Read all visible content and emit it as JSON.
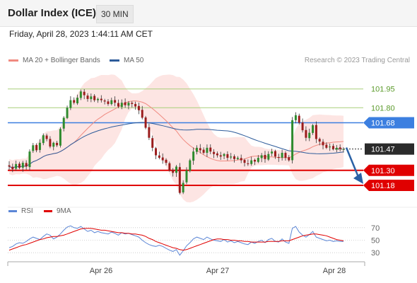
{
  "header": {
    "title": "Dollar Index (ICE)",
    "timeframe": "30 MIN"
  },
  "datetime": "Friday, April 28, 2023 1:44:11 AM CET",
  "legend": {
    "ma20_label": "MA 20 + Bollinger Bands",
    "ma50_label": "MA 50",
    "credit": "Research © 2023 Trading Central",
    "rsi_label": "RSI",
    "rsi_ma_label": "9MA"
  },
  "colors": {
    "ma20": "#f08a80",
    "ma50": "#2d5b9a",
    "bands_fill": "#fde0de",
    "candle_up": "#2e8b2e",
    "candle_down": "#9b1c1c",
    "level_green": "#a8cf7a",
    "level_blue": "#3c7fe0",
    "level_red": "#e00000",
    "current": "#2b2b2b",
    "arrow": "#2a61a5",
    "rsi": "#5b86d6",
    "rsi_ma": "#e00000"
  },
  "chart_data": [
    {
      "type": "candlestick",
      "title": "Dollar Index (ICE)",
      "x_ticks": [
        "Apr 26",
        "Apr 27",
        "Apr 28"
      ],
      "ylim": [
        101.05,
        102.05
      ],
      "levels": [
        {
          "value": 101.95,
          "label": "101.95",
          "kind": "resistance"
        },
        {
          "value": 101.8,
          "label": "101.80",
          "kind": "resistance"
        },
        {
          "value": 101.68,
          "label": "101.68",
          "kind": "pivot"
        },
        {
          "value": 101.47,
          "label": "101.47",
          "kind": "current"
        },
        {
          "value": 101.3,
          "label": "101.30",
          "kind": "support"
        },
        {
          "value": 101.18,
          "label": "101.18",
          "kind": "support"
        }
      ],
      "close": [
        101.33,
        101.31,
        101.35,
        101.32,
        101.36,
        101.33,
        101.45,
        101.5,
        101.46,
        101.52,
        101.58,
        101.55,
        101.49,
        101.52,
        101.5,
        101.63,
        101.72,
        101.8,
        101.86,
        101.84,
        101.88,
        101.93,
        101.9,
        101.87,
        101.89,
        101.86,
        101.87,
        101.86,
        101.85,
        101.83,
        101.86,
        101.84,
        101.81,
        101.84,
        101.82,
        101.84,
        101.83,
        101.81,
        101.78,
        101.72,
        101.64,
        101.56,
        101.48,
        101.42,
        101.4,
        101.38,
        101.36,
        101.3,
        101.28,
        101.33,
        101.12,
        101.2,
        101.3,
        101.38,
        101.45,
        101.48,
        101.46,
        101.44,
        101.48,
        101.45,
        101.43,
        101.42,
        101.41,
        101.43,
        101.4,
        101.41,
        101.39,
        101.4,
        101.38,
        101.36,
        101.35,
        101.38,
        101.37,
        101.4,
        101.42,
        101.39,
        101.43,
        101.45,
        101.41,
        101.4,
        101.44,
        101.4,
        101.38,
        101.7,
        101.74,
        101.68,
        101.62,
        101.56,
        101.6,
        101.66,
        101.55,
        101.53,
        101.5,
        101.48,
        101.49,
        101.47,
        101.48,
        101.47,
        101.47
      ],
      "series": [
        {
          "name": "MA 20 + Bollinger Bands"
        },
        {
          "name": "MA 50"
        }
      ]
    },
    {
      "type": "line",
      "title": "",
      "y_ticks": [
        70,
        50,
        30
      ],
      "ylim": [
        20,
        80
      ],
      "series": [
        {
          "name": "RSI",
          "values": [
            38,
            40,
            44,
            46,
            45,
            48,
            52,
            55,
            53,
            51,
            56,
            60,
            58,
            52,
            55,
            60,
            66,
            71,
            73,
            70,
            69,
            72,
            68,
            64,
            66,
            62,
            64,
            62,
            61,
            60,
            63,
            61,
            58,
            62,
            60,
            61,
            59,
            57,
            55,
            50,
            46,
            43,
            41,
            40,
            42,
            40,
            37,
            34,
            32,
            35,
            26,
            33,
            41,
            46,
            52,
            55,
            53,
            51,
            55,
            52,
            50,
            49,
            48,
            51,
            47,
            49,
            46,
            48,
            46,
            44,
            43,
            47,
            45,
            48,
            50,
            46,
            51,
            53,
            48,
            47,
            52,
            47,
            45,
            69,
            72,
            63,
            58,
            55,
            59,
            64,
            55,
            53,
            51,
            49,
            50,
            48,
            49,
            48,
            48
          ]
        },
        {
          "name": "9MA",
          "values": [
            34,
            36,
            38,
            40,
            42,
            43,
            45,
            47,
            49,
            51,
            52,
            54,
            55,
            56,
            56,
            57,
            58,
            60,
            62,
            64,
            66,
            68,
            69,
            69,
            69,
            68,
            67,
            66,
            66,
            65,
            64,
            63,
            62,
            62,
            61,
            61,
            60,
            60,
            59,
            58,
            56,
            53,
            51,
            48,
            46,
            44,
            42,
            40,
            38,
            37,
            35,
            34,
            35,
            37,
            39,
            41,
            43,
            45,
            47,
            49,
            51,
            52,
            52,
            51,
            51,
            50,
            50,
            49,
            49,
            48,
            48,
            47,
            47,
            47,
            47,
            47,
            48,
            48,
            48,
            48,
            49,
            49,
            49,
            51,
            53,
            55,
            57,
            58,
            59,
            60,
            60,
            59,
            58,
            57,
            55,
            53,
            51,
            50,
            49
          ]
        }
      ]
    }
  ]
}
